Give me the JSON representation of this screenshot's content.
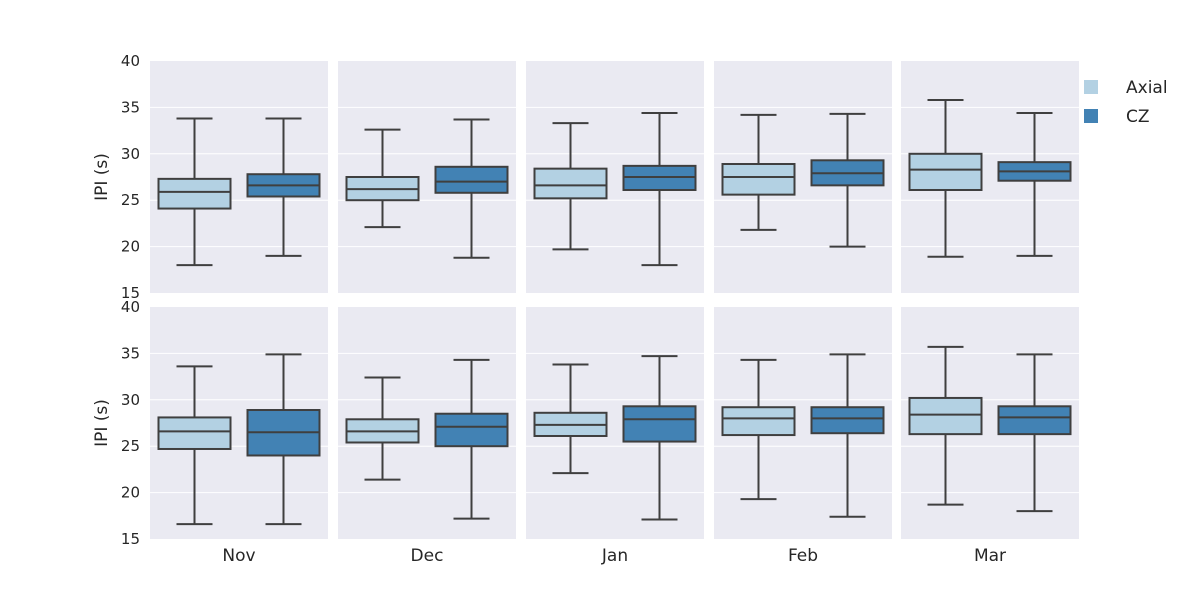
{
  "chart_data": {
    "type": "box",
    "months": [
      "Nov",
      "Dec",
      "Jan",
      "Feb",
      "Mar"
    ],
    "ylabel": "IPI (s)",
    "ylim": [
      15,
      40
    ],
    "yticks": [
      15,
      20,
      25,
      30,
      35,
      40
    ],
    "grid": true,
    "legend_position": "right-top",
    "legend": [
      {
        "name": "Axial",
        "color": "#b3d1e3"
      },
      {
        "name": "CZ",
        "color": "#4282b4"
      }
    ],
    "rows": [
      {
        "months": [
          {
            "month": "Nov",
            "boxes": [
              {
                "series": "Axial",
                "min": 18.0,
                "q1": 24.1,
                "median": 25.9,
                "q3": 27.3,
                "max": 33.8
              },
              {
                "series": "CZ",
                "min": 19.0,
                "q1": 25.4,
                "median": 26.6,
                "q3": 27.8,
                "max": 33.8
              }
            ]
          },
          {
            "month": "Dec",
            "boxes": [
              {
                "series": "Axial",
                "min": 22.1,
                "q1": 25.0,
                "median": 26.2,
                "q3": 27.5,
                "max": 32.6
              },
              {
                "series": "CZ",
                "min": 18.8,
                "q1": 25.8,
                "median": 27.0,
                "q3": 28.6,
                "max": 33.7
              }
            ]
          },
          {
            "month": "Jan",
            "boxes": [
              {
                "series": "Axial",
                "min": 19.7,
                "q1": 25.2,
                "median": 26.6,
                "q3": 28.4,
                "max": 33.3
              },
              {
                "series": "CZ",
                "min": 18.0,
                "q1": 26.1,
                "median": 27.5,
                "q3": 28.7,
                "max": 34.4
              }
            ]
          },
          {
            "month": "Feb",
            "boxes": [
              {
                "series": "Axial",
                "min": 21.8,
                "q1": 25.6,
                "median": 27.5,
                "q3": 28.9,
                "max": 34.2
              },
              {
                "series": "CZ",
                "min": 20.0,
                "q1": 26.6,
                "median": 27.9,
                "q3": 29.3,
                "max": 34.3
              }
            ]
          },
          {
            "month": "Mar",
            "boxes": [
              {
                "series": "Axial",
                "min": 18.9,
                "q1": 26.1,
                "median": 28.3,
                "q3": 30.0,
                "max": 35.8
              },
              {
                "series": "CZ",
                "min": 19.0,
                "q1": 27.1,
                "median": 28.1,
                "q3": 29.1,
                "max": 34.4
              }
            ]
          }
        ]
      },
      {
        "months": [
          {
            "month": "Nov",
            "boxes": [
              {
                "series": "Axial",
                "min": 16.6,
                "q1": 24.7,
                "median": 26.6,
                "q3": 28.1,
                "max": 33.6
              },
              {
                "series": "CZ",
                "min": 16.6,
                "q1": 24.0,
                "median": 26.5,
                "q3": 28.9,
                "max": 34.9
              }
            ]
          },
          {
            "month": "Dec",
            "boxes": [
              {
                "series": "Axial",
                "min": 21.4,
                "q1": 25.4,
                "median": 26.6,
                "q3": 27.9,
                "max": 32.4
              },
              {
                "series": "CZ",
                "min": 17.2,
                "q1": 25.0,
                "median": 27.1,
                "q3": 28.5,
                "max": 34.3
              }
            ]
          },
          {
            "month": "Jan",
            "boxes": [
              {
                "series": "Axial",
                "min": 22.1,
                "q1": 26.1,
                "median": 27.3,
                "q3": 28.6,
                "max": 33.8
              },
              {
                "series": "CZ",
                "min": 17.1,
                "q1": 25.5,
                "median": 27.9,
                "q3": 29.3,
                "max": 34.7
              }
            ]
          },
          {
            "month": "Feb",
            "boxes": [
              {
                "series": "Axial",
                "min": 19.3,
                "q1": 26.2,
                "median": 28.0,
                "q3": 29.2,
                "max": 34.3
              },
              {
                "series": "CZ",
                "min": 17.4,
                "q1": 26.4,
                "median": 28.0,
                "q3": 29.2,
                "max": 34.9
              }
            ]
          },
          {
            "month": "Mar",
            "boxes": [
              {
                "series": "Axial",
                "min": 18.7,
                "q1": 26.3,
                "median": 28.4,
                "q3": 30.2,
                "max": 35.7
              },
              {
                "series": "CZ",
                "min": 18.0,
                "q1": 26.3,
                "median": 28.1,
                "q3": 29.3,
                "max": 34.9
              }
            ]
          }
        ]
      }
    ]
  }
}
